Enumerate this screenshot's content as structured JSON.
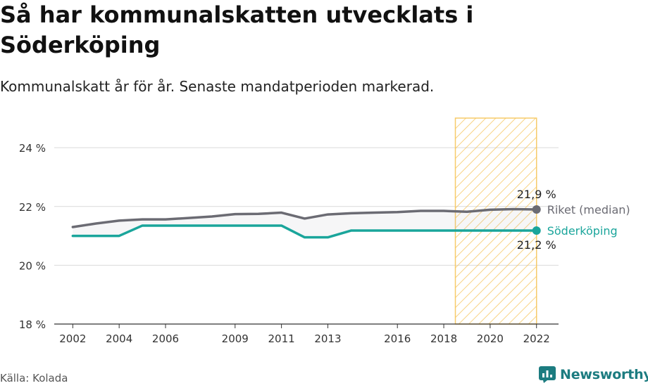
{
  "title": "Så har kommunalskatten utvecklats i Söderköping",
  "subtitle": "Kommunalskatt år för år. Senaste mandatperioden markerad.",
  "source": "Källa: Kolada",
  "brand": "Newsworthy",
  "colors": {
    "riket": "#6b6b73",
    "soderkoping": "#1aa59b",
    "highlight": "#f6c55a",
    "grid": "#d9d9d9"
  },
  "chart_data": {
    "type": "line",
    "x": [
      2002,
      2003,
      2004,
      2005,
      2006,
      2007,
      2008,
      2009,
      2010,
      2011,
      2012,
      2013,
      2014,
      2015,
      2016,
      2017,
      2018,
      2019,
      2020,
      2021,
      2022
    ],
    "x_ticks": [
      2002,
      2004,
      2006,
      2009,
      2011,
      2013,
      2016,
      2018,
      2020,
      2022
    ],
    "series": [
      {
        "name": "Riket (median)",
        "color": "#6b6b73",
        "values": [
          21.3,
          21.42,
          21.52,
          21.56,
          21.56,
          21.61,
          21.66,
          21.74,
          21.75,
          21.79,
          21.59,
          21.73,
          21.77,
          21.79,
          21.81,
          21.85,
          21.85,
          21.82,
          21.89,
          21.91,
          21.9
        ],
        "end_label": "21,9 %"
      },
      {
        "name": "Söderköping",
        "color": "#1aa59b",
        "values": [
          21.0,
          21.0,
          21.0,
          21.35,
          21.35,
          21.35,
          21.35,
          21.35,
          21.35,
          21.35,
          20.95,
          20.95,
          21.18,
          21.18,
          21.18,
          21.18,
          21.18,
          21.18,
          21.18,
          21.18,
          21.18
        ],
        "end_label": "21,2 %"
      }
    ],
    "y_ticks": [
      {
        "value": 18,
        "label": "18 %"
      },
      {
        "value": 20,
        "label": "20 %"
      },
      {
        "value": 22,
        "label": "22 %"
      },
      {
        "value": 24,
        "label": "24 %"
      }
    ],
    "ylim": [
      18,
      25.2
    ],
    "xlim": [
      2001.2,
      2022.95
    ],
    "highlight_period": [
      2018.5,
      2022
    ],
    "grid": true,
    "legend": "inline-right"
  }
}
